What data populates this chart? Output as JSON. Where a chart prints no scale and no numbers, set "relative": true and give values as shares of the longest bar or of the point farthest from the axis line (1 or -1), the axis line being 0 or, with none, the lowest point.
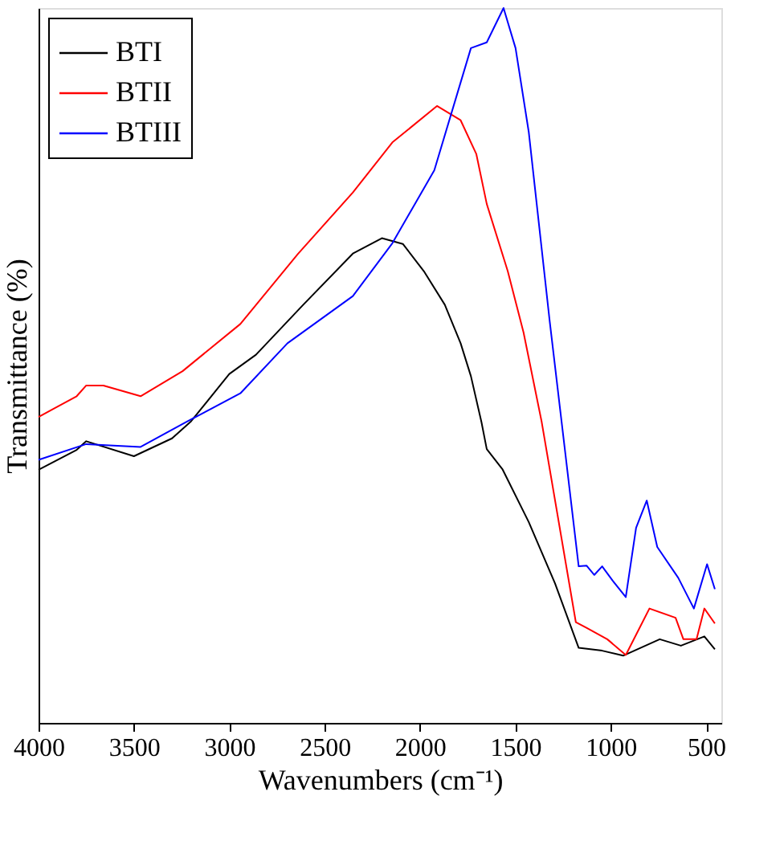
{
  "chart_data": {
    "type": "line",
    "relative": true,
    "xlabel": "Wavenumbers (cm⁻¹)",
    "ylabel": "Transmittance (%)",
    "xlim": [
      4000,
      420
    ],
    "xticks": [
      4000,
      3500,
      3000,
      2500,
      2000,
      1500,
      1000,
      500
    ],
    "tick_labels": "x",
    "legend": "top left",
    "grid": false,
    "marker": "none",
    "line_style": "solid",
    "series": [
      {
        "name": "BTI",
        "color": "#000000",
        "x": [
          4000,
          3800,
          3750,
          3500,
          3300,
          3200,
          3000,
          2860,
          2612,
          2350,
          2200,
          2090,
          1980,
          1870,
          1787,
          1733,
          1678,
          1650,
          1568,
          1430,
          1292,
          1168,
          1045,
          935,
          743,
          632,
          509,
          454
        ],
        "values": [
          0.354,
          0.382,
          0.394,
          0.373,
          0.398,
          0.422,
          0.488,
          0.515,
          0.585,
          0.657,
          0.678,
          0.67,
          0.632,
          0.585,
          0.531,
          0.485,
          0.421,
          0.383,
          0.355,
          0.281,
          0.195,
          0.105,
          0.101,
          0.094,
          0.117,
          0.108,
          0.121,
          0.103
        ]
      },
      {
        "name": "BTII",
        "color": "#ff0000",
        "x": [
          4000,
          3800,
          3750,
          3660,
          3465,
          3245,
          2942,
          2640,
          2352,
          2145,
          1911,
          1787,
          1705,
          1650,
          1540,
          1457,
          1362,
          1183,
          1127,
          1018,
          921,
          797,
          660,
          619,
          550,
          509,
          454
        ],
        "values": [
          0.428,
          0.457,
          0.472,
          0.472,
          0.457,
          0.492,
          0.558,
          0.656,
          0.742,
          0.812,
          0.863,
          0.843,
          0.796,
          0.726,
          0.632,
          0.546,
          0.421,
          0.141,
          0.133,
          0.117,
          0.095,
          0.16,
          0.147,
          0.117,
          0.117,
          0.16,
          0.139
        ]
      },
      {
        "name": "BTIII",
        "color": "#0000ff",
        "x": [
          4000,
          3750,
          3465,
          3218,
          2942,
          2695,
          2352,
          2145,
          1925,
          1733,
          1650,
          1562,
          1499,
          1430,
          1320,
          1168,
          1127,
          1086,
          1045,
          990,
          921,
          867,
          811,
          756,
          646,
          564,
          495,
          454
        ],
        "values": [
          0.368,
          0.39,
          0.386,
          0.422,
          0.461,
          0.531,
          0.597,
          0.671,
          0.773,
          0.944,
          0.952,
          1.0,
          0.944,
          0.827,
          0.562,
          0.219,
          0.22,
          0.207,
          0.219,
          0.199,
          0.176,
          0.273,
          0.311,
          0.246,
          0.203,
          0.16,
          0.222,
          0.187
        ]
      }
    ]
  }
}
